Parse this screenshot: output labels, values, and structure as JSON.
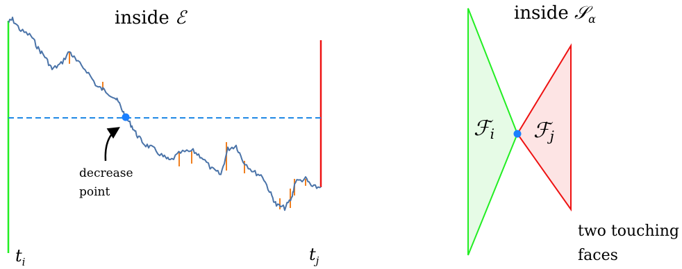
{
  "left_panel": {
    "title_prefix": "inside ",
    "title_symbol": "ℰ",
    "left_time_label": "t",
    "left_time_sub": "i",
    "right_time_label": "t",
    "right_time_sub": "j",
    "annotation_line1": "decrease",
    "annotation_line2": "point"
  },
  "right_panel": {
    "title_prefix": "inside ",
    "title_symbol": "𝒮",
    "title_sub": "α",
    "face_i_symbol": "ℱ",
    "face_i_sub": "i",
    "face_j_symbol": "ℱ",
    "face_j_sub": "j",
    "caption_line1": "two touching",
    "caption_line2": "faces"
  },
  "colors": {
    "green": "#22ee22",
    "red": "#ee1111",
    "path_blue": "#4a73a8",
    "jump_orange": "#f07f1f",
    "dash_blue": "#1e88e5",
    "point_blue": "#1a7fff",
    "green_fill": "#e6fbe6",
    "red_fill": "#fde4e4"
  }
}
